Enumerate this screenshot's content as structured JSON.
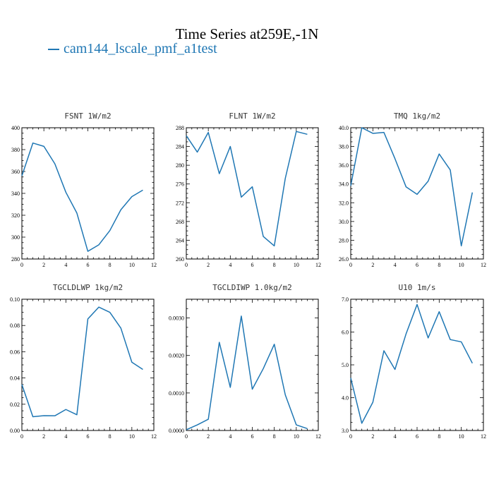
{
  "figure": {
    "title": "Time Series at259E,-1N",
    "legend": "cam144_lscale_pmf_a1test",
    "line_color": "#1f77b4"
  },
  "chart_data": [
    {
      "type": "line",
      "title": "FSNT   1W/m2",
      "x": [
        0,
        1,
        2,
        3,
        4,
        5,
        6,
        7,
        8,
        9,
        10,
        11
      ],
      "series": [
        {
          "name": "cam144_lscale_pmf_a1test",
          "values": [
            356,
            386,
            383,
            367,
            341,
            322,
            287,
            293,
            306,
            325,
            337,
            343
          ]
        }
      ],
      "xlim": [
        0,
        12
      ],
      "ylim": [
        280,
        400
      ],
      "xticks": [
        "0",
        "2",
        "4",
        "6",
        "8",
        "10",
        "12"
      ],
      "yticks": [
        "280",
        "300",
        "320",
        "340",
        "360",
        "380",
        "400"
      ]
    },
    {
      "type": "line",
      "title": "FLNT   1W/m2",
      "x": [
        0,
        1,
        2,
        3,
        4,
        5,
        6,
        7,
        8,
        9,
        10,
        11
      ],
      "series": [
        {
          "name": "cam144_lscale_pmf_a1test",
          "values": [
            286.3,
            282.8,
            287.0,
            278.2,
            284.0,
            273.2,
            275.4,
            264.8,
            262.8,
            277.2,
            287.2,
            286.6
          ]
        }
      ],
      "xlim": [
        0,
        12
      ],
      "ylim": [
        260,
        288
      ],
      "xticks": [
        "0",
        "2",
        "4",
        "6",
        "8",
        "10",
        "12"
      ],
      "yticks": [
        "260",
        "264",
        "268",
        "272",
        "276",
        "280",
        "284",
        "288"
      ]
    },
    {
      "type": "line",
      "title": "TMQ   1kg/m2",
      "x": [
        0,
        1,
        2,
        3,
        4,
        5,
        6,
        7,
        8,
        9,
        10,
        11
      ],
      "series": [
        {
          "name": "cam144_lscale_pmf_a1test",
          "values": [
            33.8,
            40.0,
            39.4,
            39.5,
            36.7,
            33.7,
            32.9,
            34.3,
            37.2,
            35.5,
            27.4,
            33.1
          ]
        }
      ],
      "xlim": [
        0,
        12
      ],
      "ylim": [
        26,
        40
      ],
      "xticks": [
        "0",
        "2",
        "4",
        "6",
        "8",
        "10",
        "12"
      ],
      "yticks": [
        "26.0",
        "28.0",
        "30.0",
        "32.0",
        "34.0",
        "36.0",
        "38.0",
        "40.0"
      ]
    },
    {
      "type": "line",
      "title": "TGCLDLWP   1kg/m2",
      "x": [
        0,
        1,
        2,
        3,
        4,
        5,
        6,
        7,
        8,
        9,
        10,
        11
      ],
      "series": [
        {
          "name": "cam144_lscale_pmf_a1test",
          "values": [
            0.035,
            0.0105,
            0.0113,
            0.0112,
            0.016,
            0.012,
            0.085,
            0.094,
            0.09,
            0.078,
            0.052,
            0.0465
          ]
        }
      ],
      "xlim": [
        0,
        12
      ],
      "ylim": [
        0,
        0.1
      ],
      "xticks": [
        "0",
        "2",
        "4",
        "6",
        "8",
        "10",
        "12"
      ],
      "yticks": [
        "0.00",
        "0.02",
        "0.04",
        "0.06",
        "0.08",
        "0.10"
      ]
    },
    {
      "type": "line",
      "title": "TGCLDIWP   1.0kg/m2",
      "x": [
        0,
        1,
        2,
        3,
        4,
        5,
        6,
        7,
        8,
        9,
        10,
        11
      ],
      "series": [
        {
          "name": "cam144_lscale_pmf_a1test",
          "values": [
            2e-05,
            0.00015,
            0.0003,
            0.00235,
            0.00115,
            0.00305,
            0.0011,
            0.00165,
            0.0023,
            0.00095,
            0.00015,
            5e-05
          ]
        }
      ],
      "xlim": [
        0,
        12
      ],
      "ylim": [
        0,
        0.0035
      ],
      "xticks": [
        "0",
        "2",
        "4",
        "6",
        "8",
        "10",
        "12"
      ],
      "yticks": [
        "0.0000",
        "0.0010",
        "0.0020",
        "0.0030"
      ],
      "ytick_values": [
        0,
        0.001,
        0.002,
        0.003
      ]
    },
    {
      "type": "line",
      "title": "U10   1m/s",
      "x": [
        0,
        1,
        2,
        3,
        4,
        5,
        6,
        7,
        8,
        9,
        10,
        11
      ],
      "series": [
        {
          "name": "cam144_lscale_pmf_a1test",
          "values": [
            4.6,
            3.22,
            3.86,
            5.43,
            4.86,
            5.94,
            6.84,
            5.82,
            6.62,
            5.77,
            5.7,
            5.05
          ]
        }
      ],
      "xlim": [
        0,
        12
      ],
      "ylim": [
        3,
        7
      ],
      "xticks": [
        "0",
        "2",
        "4",
        "6",
        "8",
        "10",
        "12"
      ],
      "yticks": [
        "3.0",
        "4.0",
        "5.0",
        "6.0",
        "7.0"
      ]
    }
  ]
}
